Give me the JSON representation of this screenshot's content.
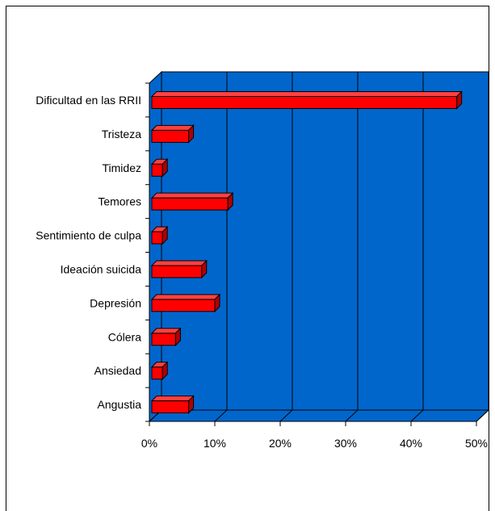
{
  "chart_data": {
    "type": "bar",
    "orientation": "horizontal",
    "style": "3d",
    "categories": [
      "Dificultad en las RRII",
      "Tristeza",
      "Timidez",
      "Temores",
      "Sentimiento de culpa",
      "Ideación suicida",
      "Depresión",
      "Cólera",
      "Ansiedad",
      "Angustia"
    ],
    "values": [
      47,
      6,
      2,
      12,
      2,
      8,
      10,
      4,
      2,
      6
    ],
    "xlim": [
      0,
      50
    ],
    "xticks": [
      "0%",
      "10%",
      "20%",
      "30%",
      "40%",
      "50%"
    ],
    "grid": true,
    "legend": false,
    "colors": {
      "plot_background": "#0066cc",
      "bar": "#ff0000",
      "bar_top": "#ff4040",
      "bar_side": "#b00000",
      "gridline": "#000000"
    }
  }
}
